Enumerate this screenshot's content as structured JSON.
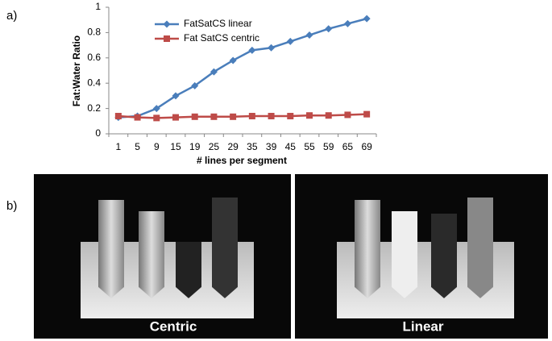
{
  "panel_labels": [
    "a)",
    "b)"
  ],
  "image_captions": [
    "Centric",
    "Linear"
  ],
  "chart_data": {
    "type": "line",
    "x_label": "# lines per segment",
    "y_label": "Fat:Water Ratio",
    "categories": [
      "1",
      "5",
      "9",
      "15",
      "19",
      "25",
      "29",
      "35",
      "39",
      "45",
      "55",
      "59",
      "65",
      "69"
    ],
    "series": [
      {
        "name": "FatSatCS linear",
        "color": "#4a7ebb",
        "marker": "diamond",
        "values": [
          0.13,
          0.14,
          0.2,
          0.3,
          0.38,
          0.49,
          0.58,
          0.66,
          0.68,
          0.73,
          0.78,
          0.83,
          0.87,
          0.91
        ]
      },
      {
        "name": "Fat SatCS centric",
        "color": "#be4b48",
        "marker": "square",
        "values": [
          0.14,
          0.13,
          0.125,
          0.13,
          0.135,
          0.135,
          0.135,
          0.14,
          0.14,
          0.14,
          0.145,
          0.145,
          0.15,
          0.155
        ]
      }
    ],
    "ylim": [
      0,
      1
    ],
    "yticks": [
      0,
      0.2,
      0.4,
      0.6,
      0.8,
      1
    ],
    "grid": false
  }
}
